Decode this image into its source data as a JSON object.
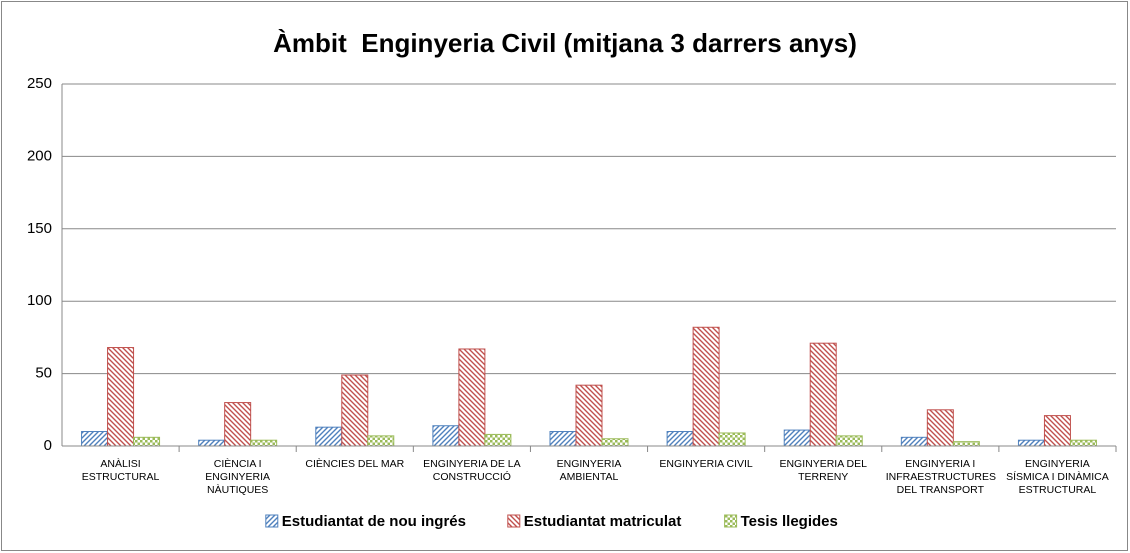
{
  "chart_data": {
    "type": "bar",
    "title": "Àmbit  Enginyeria Civil (mitjana 3 darrers anys)",
    "categories": [
      "ANÀLISI ESTRUCTURAL",
      "CIÈNCIA I ENGINYERIA NÀUTIQUES",
      "CIÈNCIES DEL MAR",
      "ENGINYERIA DE LA CONSTRUCCIÓ",
      "ENGINYERIA AMBIENTAL",
      "ENGINYERIA CIVIL",
      "ENGINYERIA DEL TERRENY",
      "ENGINYERIA I INFRAESTRUCTURES DEL TRANSPORT",
      "ENGINYERIA SÍSMICA I DINÀMICA ESTRUCTURAL"
    ],
    "series": [
      {
        "name": "Estudiantat de nou ingrés",
        "color": "#4f81bd",
        "pattern": "stripes",
        "values": [
          10,
          4,
          13,
          14,
          10,
          10,
          11,
          6,
          4
        ]
      },
      {
        "name": "Estudiantat matriculat",
        "color": "#c0504d",
        "pattern": "stripes",
        "values": [
          68,
          30,
          49,
          67,
          42,
          82,
          71,
          25,
          21
        ]
      },
      {
        "name": "Tesis llegides",
        "color": "#9bbb59",
        "pattern": "checker",
        "values": [
          6,
          4,
          7,
          8,
          5,
          9,
          7,
          3,
          4
        ]
      }
    ],
    "ylim": [
      0,
      250
    ],
    "yticks": [
      0,
      50,
      100,
      150,
      200,
      250
    ],
    "grid": true,
    "legend": "bottom"
  }
}
